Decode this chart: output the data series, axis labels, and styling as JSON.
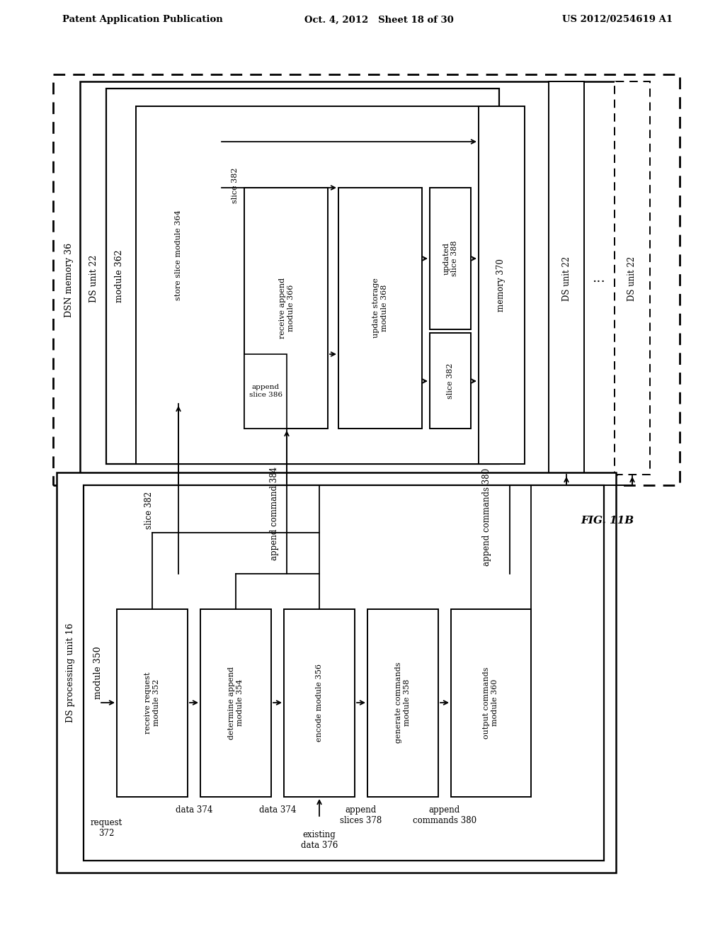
{
  "header_left": "Patent Application Publication",
  "header_mid": "Oct. 4, 2012   Sheet 18 of 30",
  "header_right": "US 2012/0254619 A1",
  "fig_label": "FIG. 11B",
  "bg_color": "#ffffff"
}
